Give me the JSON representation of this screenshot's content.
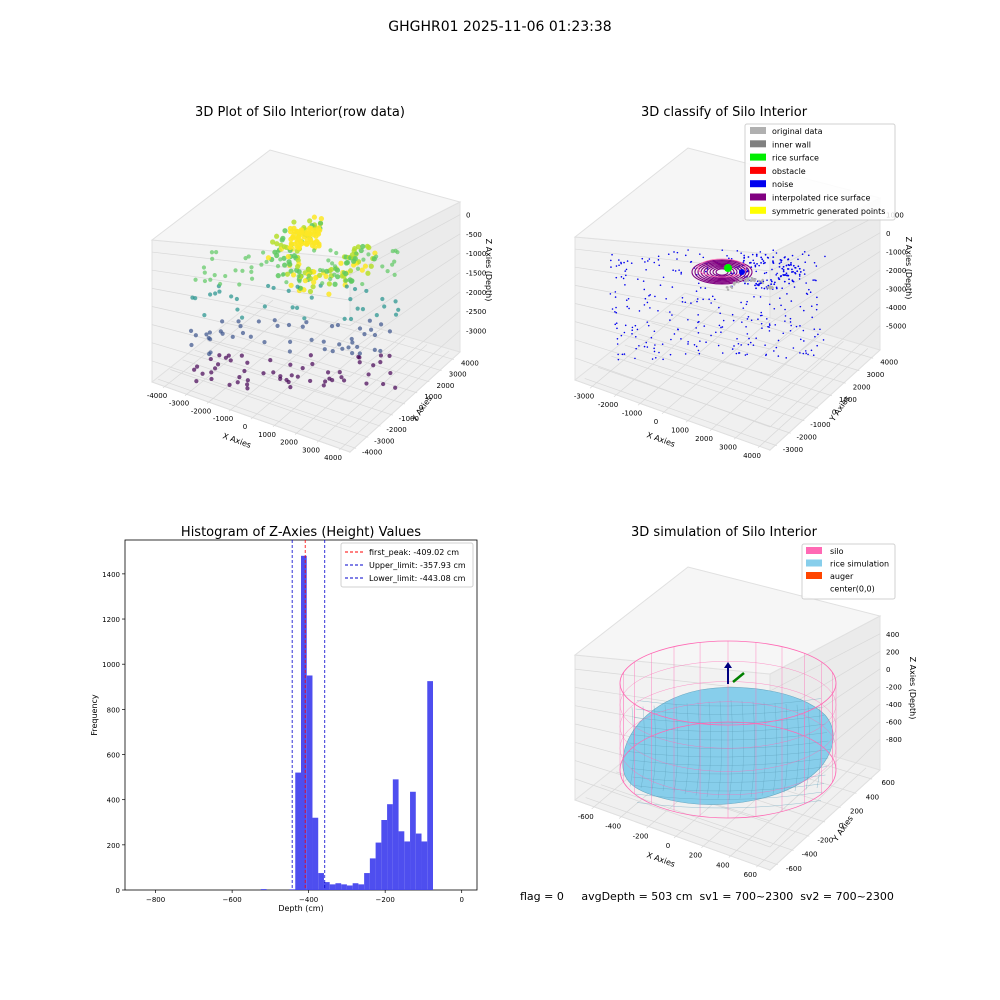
{
  "figure_title": "GHGHR01 2025-11-06 01:23:38",
  "status_line": "flag = 0     avgDepth = 503 cm  sv1 = 700~2300  sv2 = 700~2300",
  "chart_data": [
    {
      "id": "raw",
      "type": "scatter3d",
      "title": "3D Plot of Silo Interior(row data)",
      "xlabel": "X Axies",
      "ylabel": "Y Axies",
      "zlabel": "Z Axies (Depth)",
      "xticks": [
        "-4000",
        "-3000",
        "-2000",
        "-1000",
        "0",
        "1000",
        "2000",
        "3000",
        "4000"
      ],
      "yticks": [
        "-4000",
        "-3000",
        "-2000",
        "-1000",
        "0",
        "1000",
        "2000",
        "3000",
        "4000"
      ],
      "zticks": [
        "-3000",
        "-2500",
        "-2000",
        "-1500",
        "-1000",
        "-500",
        "0"
      ],
      "xlim": [
        -4000,
        4000
      ],
      "ylim": [
        -4000,
        4000
      ],
      "zlim": [
        -3300,
        100
      ],
      "colormap": "viridis",
      "grid": true
    },
    {
      "id": "classify",
      "type": "scatter3d",
      "title": "3D classify of Silo Interior",
      "xlabel": "X Axies",
      "ylabel": "Y Axies",
      "zlabel": "Z Axies (Depth)",
      "xticks": [
        "-3000",
        "-2000",
        "-1000",
        "0",
        "1000",
        "2000",
        "3000",
        "4000"
      ],
      "yticks": [
        "-3000",
        "-2000",
        "-1000",
        "0",
        "1000",
        "2000",
        "3000",
        "4000"
      ],
      "zticks": [
        "-5000",
        "-4000",
        "-3000",
        "-2000",
        "-1000",
        "0",
        "1000"
      ],
      "xlim": [
        -3500,
        4000
      ],
      "ylim": [
        -3500,
        4000
      ],
      "zlim": [
        -5500,
        1200
      ],
      "legend_position": "top-right",
      "legend": [
        {
          "label": "original data",
          "color": "#b0b0b0"
        },
        {
          "label": "inner wall",
          "color": "#808080"
        },
        {
          "label": "rice surface",
          "color": "#00ee00"
        },
        {
          "label": "obstacle",
          "color": "#ff0000"
        },
        {
          "label": "noise",
          "color": "#0000ee"
        },
        {
          "label": "interpolated rice surface",
          "color": "#800080"
        },
        {
          "label": "symmetric generated points",
          "color": "#ffff00"
        }
      ],
      "grid": true
    },
    {
      "id": "hist",
      "type": "bar",
      "title": "Histogram of Z-Axies (Height) Values",
      "xlabel": "Depth (cm)",
      "ylabel": "Frequency",
      "xlim": [
        -880,
        40
      ],
      "ylim": [
        0,
        1550
      ],
      "xticks": [
        -800,
        -600,
        -400,
        -200,
        0
      ],
      "yticks": [
        0,
        200,
        400,
        600,
        800,
        1000,
        1200,
        1400
      ],
      "bar_color": "#4444ee",
      "bin_width": 15,
      "bins": [
        {
          "left": -525,
          "value": 4
        },
        {
          "left": -450,
          "value": 3
        },
        {
          "left": -435,
          "value": 520
        },
        {
          "left": -420,
          "value": 1480
        },
        {
          "left": -405,
          "value": 950
        },
        {
          "left": -390,
          "value": 320
        },
        {
          "left": -375,
          "value": 75
        },
        {
          "left": -360,
          "value": 35
        },
        {
          "left": -345,
          "value": 25
        },
        {
          "left": -330,
          "value": 30
        },
        {
          "left": -315,
          "value": 25
        },
        {
          "left": -300,
          "value": 20
        },
        {
          "left": -285,
          "value": 30
        },
        {
          "left": -270,
          "value": 25
        },
        {
          "left": -255,
          "value": 75
        },
        {
          "left": -240,
          "value": 140
        },
        {
          "left": -225,
          "value": 210
        },
        {
          "left": -210,
          "value": 310
        },
        {
          "left": -195,
          "value": 380
        },
        {
          "left": -180,
          "value": 490
        },
        {
          "left": -165,
          "value": 260
        },
        {
          "left": -150,
          "value": 215
        },
        {
          "left": -135,
          "value": 435
        },
        {
          "left": -120,
          "value": 250
        },
        {
          "left": -105,
          "value": 215
        },
        {
          "left": -90,
          "value": 925
        }
      ],
      "vlines": [
        {
          "label": "first_peak: -409.02 cm",
          "x": -409.02,
          "color": "#ff0000"
        },
        {
          "label": "Upper_limit: -357.93 cm",
          "x": -357.93,
          "color": "#0000cc"
        },
        {
          "label": "Lower_limit: -443.08 cm",
          "x": -443.08,
          "color": "#0000cc"
        }
      ],
      "legend_position": "top-right",
      "grid": false
    },
    {
      "id": "sim",
      "type": "surface3d",
      "title": "3D simulation of Silo Interior",
      "xlabel": "X Axies",
      "ylabel": "Y Axies",
      "zlabel": "Z Axies (Depth)",
      "xticks": [
        "-600",
        "-400",
        "-200",
        "0",
        "200",
        "400",
        "600"
      ],
      "yticks": [
        "-600",
        "-400",
        "-200",
        "0",
        "200",
        "400",
        "600"
      ],
      "zticks": [
        "-800",
        "-600",
        "-400",
        "-200",
        "0",
        "200",
        "400"
      ],
      "xlim": [
        -700,
        700
      ],
      "ylim": [
        -700,
        700
      ],
      "zlim": [
        -900,
        450
      ],
      "legend_position": "top-right",
      "legend": [
        {
          "label": "silo",
          "color": "#ff69b4"
        },
        {
          "label": "rice simulation",
          "color": "#87ceeb"
        },
        {
          "label": "auger",
          "color": "#ff4500"
        },
        {
          "label": "center(0,0)",
          "color": ""
        }
      ],
      "grid": true
    }
  ]
}
